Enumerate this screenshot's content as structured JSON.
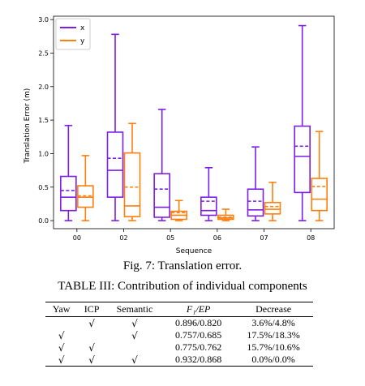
{
  "figure": {
    "caption": "Fig. 7: Translation error.",
    "chart_data": {
      "type": "box",
      "xlabel": "Sequence",
      "ylabel": "Translation Error (m)",
      "ylim": [
        -0.12,
        3.05
      ],
      "yticks": [
        "0.0",
        "0.5",
        "1.0",
        "1.5",
        "2.0",
        "2.5",
        "3.0"
      ],
      "categories": [
        "00",
        "02",
        "05",
        "06",
        "07",
        "08"
      ],
      "legend_position": "top-left",
      "series": [
        {
          "name": "x",
          "color": "#7b1fe6",
          "boxes": [
            {
              "whislo": 0.0,
              "q1": 0.15,
              "med": 0.35,
              "mean": 0.45,
              "q3": 0.66,
              "whishi": 1.42
            },
            {
              "whislo": 0.0,
              "q1": 0.35,
              "med": 0.75,
              "mean": 0.93,
              "q3": 1.32,
              "whishi": 2.78
            },
            {
              "whislo": 0.0,
              "q1": 0.05,
              "med": 0.2,
              "mean": 0.47,
              "q3": 0.7,
              "whishi": 1.66
            },
            {
              "whislo": 0.0,
              "q1": 0.08,
              "med": 0.15,
              "mean": 0.29,
              "q3": 0.35,
              "whishi": 0.79
            },
            {
              "whislo": 0.0,
              "q1": 0.07,
              "med": 0.16,
              "mean": 0.29,
              "q3": 0.47,
              "whishi": 1.1
            },
            {
              "whislo": 0.0,
              "q1": 0.42,
              "med": 0.96,
              "mean": 1.11,
              "q3": 1.41,
              "whishi": 2.91
            }
          ]
        },
        {
          "name": "y",
          "color": "#ff7f0e",
          "boxes": [
            {
              "whislo": 0.0,
              "q1": 0.2,
              "med": 0.35,
              "mean": 0.37,
              "q3": 0.52,
              "whishi": 0.97
            },
            {
              "whislo": 0.0,
              "q1": 0.06,
              "med": 0.22,
              "mean": 0.5,
              "q3": 1.01,
              "whishi": 1.45
            },
            {
              "whislo": 0.0,
              "q1": 0.02,
              "med": 0.08,
              "mean": 0.12,
              "q3": 0.14,
              "whishi": 0.3
            },
            {
              "whislo": 0.0,
              "q1": 0.02,
              "med": 0.04,
              "mean": 0.05,
              "q3": 0.08,
              "whishi": 0.17
            },
            {
              "whislo": 0.0,
              "q1": 0.1,
              "med": 0.17,
              "mean": 0.21,
              "q3": 0.27,
              "whishi": 0.57
            },
            {
              "whislo": 0.0,
              "q1": 0.15,
              "med": 0.32,
              "mean": 0.51,
              "q3": 0.63,
              "whishi": 1.33
            }
          ]
        }
      ]
    }
  },
  "table": {
    "caption": "TABLE III: Contribution of individual components",
    "headers": {
      "yaw": "Yaw",
      "icp": "ICP",
      "semantic": "Semantic",
      "f1_ep": "F₁/EP",
      "decrease": "Decrease"
    },
    "rows": [
      {
        "yaw": "",
        "icp": "√",
        "semantic": "√",
        "f1_ep": "0.896/0.820",
        "decrease": "3.6%/4.8%"
      },
      {
        "yaw": "√",
        "icp": "",
        "semantic": "√",
        "f1_ep": "0.757/0.685",
        "decrease": "17.5%/18.3%"
      },
      {
        "yaw": "√",
        "icp": "√",
        "semantic": "",
        "f1_ep": "0.775/0.762",
        "decrease": "15.7%/10.6%"
      },
      {
        "yaw": "√",
        "icp": "√",
        "semantic": "√",
        "f1_ep": "0.932/0.868",
        "decrease": "0.0%/0.0%"
      }
    ]
  }
}
